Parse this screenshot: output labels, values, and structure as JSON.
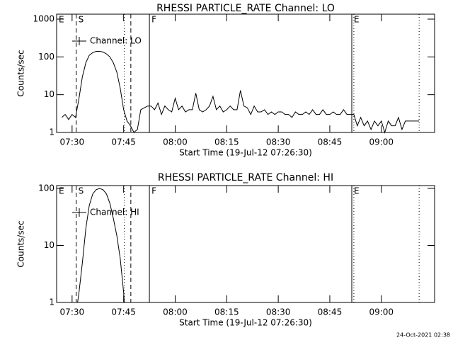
{
  "chart_data": [
    {
      "type": "line",
      "title": "RHESSI PARTICLE_RATE Channel: LO",
      "xlabel": "Start Time (19-Jul-12 07:26:30)",
      "ylabel": "Counts/sec",
      "x": [
        27,
        28,
        29,
        30,
        31,
        32,
        33,
        34,
        35,
        36,
        37,
        38,
        39,
        40,
        41,
        42,
        43,
        44,
        45,
        46,
        47,
        48,
        49,
        50,
        51,
        52,
        53,
        54,
        55,
        56,
        57,
        58,
        59,
        60,
        61,
        62,
        63,
        64,
        65,
        66,
        67,
        68,
        69,
        70,
        71,
        72,
        73,
        74,
        75,
        76,
        77,
        78,
        79,
        80,
        81,
        82,
        83,
        84,
        85,
        86,
        87,
        88,
        89,
        90,
        91,
        92,
        93,
        94,
        95,
        96,
        97,
        98,
        99,
        100,
        101,
        102,
        103,
        104,
        105,
        106,
        107,
        108,
        109,
        110,
        111,
        112,
        113,
        114,
        115,
        116,
        117,
        118,
        119,
        120,
        121,
        122,
        123,
        124,
        125,
        126,
        127,
        128,
        129,
        130,
        131
      ],
      "series": [
        {
          "name": "Channel: LO",
          "color": "#000000",
          "values": [
            2.5,
            3,
            2.2,
            3,
            2.5,
            8,
            30,
            70,
            110,
            130,
            140,
            140,
            135,
            120,
            100,
            70,
            40,
            15,
            4,
            2,
            1.5,
            1,
            1.2,
            4,
            4.5,
            5,
            5,
            4,
            6,
            3,
            5,
            4,
            3.5,
            8,
            4,
            5,
            3.5,
            4,
            4,
            11,
            4,
            3.5,
            4,
            5,
            9,
            4,
            5,
            3.5,
            4,
            5,
            4,
            4,
            13,
            5,
            4.5,
            3,
            5,
            3.5,
            3.5,
            4,
            3,
            3.5,
            3,
            3.5,
            3.5,
            3,
            3,
            2.5,
            3.5,
            3,
            3,
            3.5,
            3,
            4,
            3,
            3,
            4,
            3,
            3,
            3.5,
            3,
            3,
            4,
            3,
            3,
            3,
            1.5,
            2.5,
            1.5,
            2,
            1.2,
            2,
            1.5,
            2,
            1,
            2,
            1.5,
            1.5,
            2.5,
            1.2,
            2,
            2,
            2,
            2,
            2
          ]
        }
      ],
      "xlim": [
        25.5,
        135.5
      ],
      "xticks": [
        {
          "value": 30,
          "label": "07:30"
        },
        {
          "value": 45,
          "label": "07:45"
        },
        {
          "value": 60,
          "label": "08:00"
        },
        {
          "value": 75,
          "label": "08:15"
        },
        {
          "value": 90,
          "label": "08:30"
        },
        {
          "value": 105,
          "label": "08:45"
        },
        {
          "value": 120,
          "label": "09:00"
        }
      ],
      "ylim": [
        1,
        1000
      ],
      "yticks": [
        1,
        10,
        100,
        1000
      ],
      "log_y": true,
      "legend": "upper left",
      "vlines": [
        {
          "x": 25.5,
          "style": "solid",
          "label": "E"
        },
        {
          "x": 31.2,
          "style": "dashed",
          "label": "S"
        },
        {
          "x": 45.2,
          "style": "dotted"
        },
        {
          "x": 47.1,
          "style": "dashed"
        },
        {
          "x": 52.5,
          "style": "solid",
          "label": "F"
        },
        {
          "x": 111.4,
          "style": "solid",
          "label": "E"
        },
        {
          "x": 112.0,
          "style": "dotted"
        },
        {
          "x": 131.0,
          "style": "dotted"
        }
      ]
    },
    {
      "type": "line",
      "title": "RHESSI PARTICLE_RATE Channel: HI",
      "xlabel": "Start Time (19-Jul-12 07:26:30)",
      "ylabel": "Counts/sec",
      "x": [
        31.6,
        32,
        33,
        34,
        35,
        36,
        37,
        38,
        39,
        40,
        41,
        42,
        43,
        44,
        45,
        45.2
      ],
      "series": [
        {
          "name": "Channel: HI",
          "color": "#000000",
          "values": [
            1,
            1.5,
            5,
            20,
            50,
            80,
            95,
            100,
            95,
            80,
            55,
            30,
            15,
            6,
            1.5,
            1
          ]
        }
      ],
      "xlim": [
        25.5,
        135.5
      ],
      "xticks": [
        {
          "value": 30,
          "label": "07:30"
        },
        {
          "value": 45,
          "label": "07:45"
        },
        {
          "value": 60,
          "label": "08:00"
        },
        {
          "value": 75,
          "label": "08:15"
        },
        {
          "value": 90,
          "label": "08:30"
        },
        {
          "value": 105,
          "label": "08:45"
        },
        {
          "value": 120,
          "label": "09:00"
        }
      ],
      "ylim": [
        1,
        100
      ],
      "yticks": [
        1,
        10,
        100
      ],
      "log_y": true,
      "legend": "upper left",
      "vlines": [
        {
          "x": 25.5,
          "style": "solid",
          "label": "E"
        },
        {
          "x": 31.2,
          "style": "dashed",
          "label": "S"
        },
        {
          "x": 45.2,
          "style": "dotted"
        },
        {
          "x": 47.1,
          "style": "dashed"
        },
        {
          "x": 52.5,
          "style": "solid",
          "label": "F"
        },
        {
          "x": 111.4,
          "style": "solid",
          "label": "E"
        },
        {
          "x": 112.0,
          "style": "dotted"
        },
        {
          "x": 131.0,
          "style": "dotted"
        }
      ]
    }
  ],
  "footer": "24-Oct-2021 02:38"
}
